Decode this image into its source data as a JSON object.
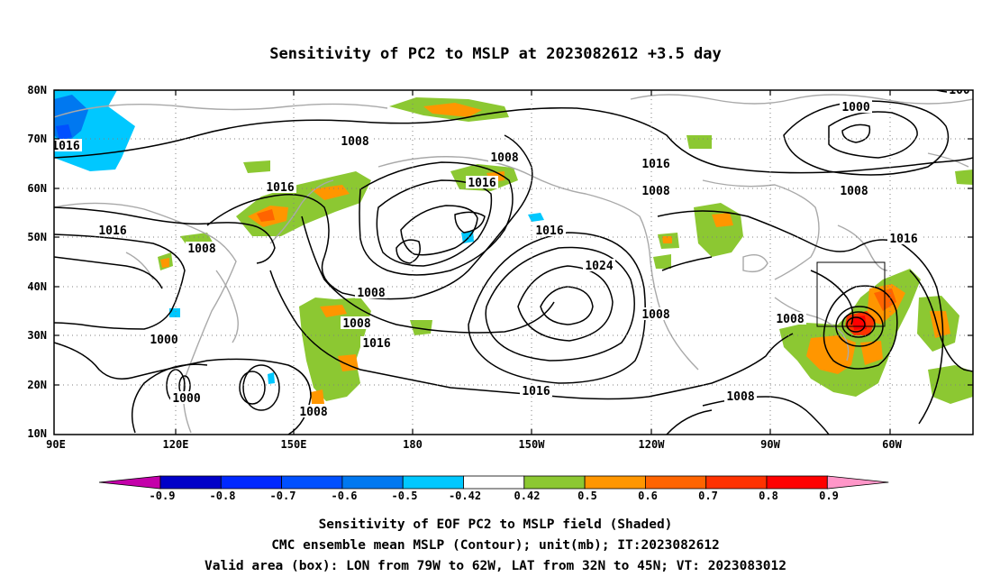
{
  "title": "Sensitivity of PC2 to MSLP at 2023082612 +3.5 day",
  "lat_labels": [
    "80N",
    "70N",
    "60N",
    "50N",
    "40N",
    "30N",
    "20N",
    "10N"
  ],
  "lon_labels": [
    "90E",
    "120E",
    "150E",
    "180",
    "150W",
    "120W",
    "90W",
    "60W"
  ],
  "contour_labels": [
    "1016",
    "1008",
    "1008",
    "1016",
    "1016",
    "1016",
    "1008",
    "1008",
    "1000",
    "1016",
    "1008",
    "1016",
    "1008",
    "1000",
    "1008",
    "1016",
    "1024",
    "1008",
    "1016",
    "1008",
    "1008",
    "1000",
    "1016",
    "1008",
    "100"
  ],
  "colorbar": {
    "labels": [
      "-0.9",
      "-0.8",
      "-0.7",
      "-0.6",
      "-0.5",
      "-0.42",
      "0.42",
      "0.5",
      "0.6",
      "0.7",
      "0.8",
      "0.9"
    ],
    "colors": [
      "#c400aa",
      "#0000c8",
      "#0028ff",
      "#0050ff",
      "#0078f0",
      "#00c8ff",
      "#ffffff",
      "#8cc832",
      "#ff9600",
      "#ff6400",
      "#ff3200",
      "#ff0000",
      "#ff96c8"
    ]
  },
  "footer": {
    "line1": "Sensitivity of EOF PC2 to MSLP field (Shaded)",
    "line2": "CMC ensemble mean MSLP (Contour); unit(mb); IT:2023082612",
    "line3": "Valid area (box): LON from 79W to 62W, LAT from 32N to 45N; VT: 2023083012"
  }
}
